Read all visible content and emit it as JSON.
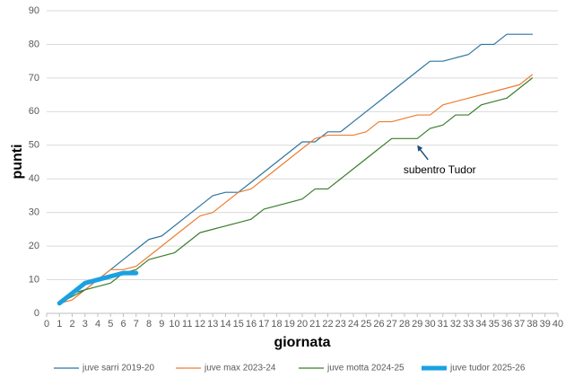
{
  "chart_data": {
    "type": "line",
    "x_label": "giornata",
    "y_label": "punti",
    "x": [
      1,
      2,
      3,
      4,
      5,
      6,
      7,
      8,
      9,
      10,
      11,
      12,
      13,
      14,
      15,
      16,
      17,
      18,
      19,
      20,
      21,
      22,
      23,
      24,
      25,
      26,
      27,
      28,
      29,
      30,
      31,
      32,
      33,
      34,
      35,
      36,
      37,
      38
    ],
    "series": [
      {
        "name": "juve sarri 2019-20",
        "color": "#2e75a0",
        "width": 1.2,
        "values": [
          3,
          6,
          7,
          10,
          13,
          16,
          19,
          22,
          23,
          26,
          29,
          32,
          35,
          36,
          36,
          39,
          42,
          45,
          48,
          51,
          51,
          54,
          54,
          57,
          60,
          63,
          66,
          69,
          72,
          75,
          75,
          76,
          77,
          80,
          80,
          83,
          83,
          83
        ]
      },
      {
        "name": "juve max 2023-24",
        "color": "#ed7d31",
        "width": 1.2,
        "values": [
          3,
          4,
          7,
          10,
          13,
          13,
          14,
          17,
          20,
          23,
          26,
          29,
          30,
          33,
          36,
          37,
          40,
          43,
          46,
          49,
          52,
          53,
          53,
          53,
          54,
          57,
          57,
          58,
          59,
          59,
          62,
          63,
          64,
          65,
          66,
          67,
          68,
          71
        ]
      },
      {
        "name": "juve motta 2024-25",
        "color": "#3a7d2c",
        "width": 1.2,
        "values": [
          3,
          5,
          7,
          8,
          9,
          12,
          13,
          16,
          17,
          18,
          21,
          24,
          25,
          26,
          27,
          28,
          31,
          32,
          33,
          34,
          37,
          37,
          40,
          43,
          46,
          49,
          52,
          52,
          52,
          55,
          56,
          59,
          59,
          62,
          63,
          64,
          67,
          70
        ]
      },
      {
        "name": "juve tudor 2025-26",
        "color": "#1ba1e2",
        "width": 5,
        "values": [
          3,
          6,
          9,
          10,
          11,
          12,
          12,
          null,
          null,
          null,
          null,
          null,
          null,
          null,
          null,
          null,
          null,
          null,
          null,
          null,
          null,
          null,
          null,
          null,
          null,
          null,
          null,
          null,
          null,
          null,
          null,
          null,
          null,
          null,
          null,
          null,
          null,
          null
        ]
      }
    ],
    "annotation": {
      "text": "subentro Tudor",
      "x": 29,
      "y": 50
    },
    "xlim": [
      0,
      40
    ],
    "xticks": [
      0,
      1,
      2,
      3,
      4,
      5,
      6,
      7,
      8,
      9,
      10,
      11,
      12,
      13,
      14,
      15,
      16,
      17,
      18,
      19,
      20,
      21,
      22,
      23,
      24,
      25,
      26,
      27,
      28,
      29,
      30,
      31,
      32,
      33,
      34,
      35,
      36,
      37,
      38,
      39,
      40
    ],
    "ylim": [
      0,
      90
    ],
    "yticks": [
      0,
      10,
      20,
      30,
      40,
      50,
      60,
      70,
      80,
      90
    ],
    "grid": true,
    "legend": "bottom"
  }
}
